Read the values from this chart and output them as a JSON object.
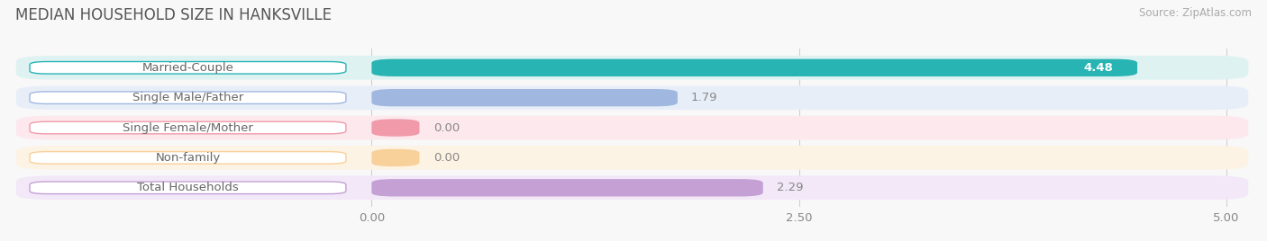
{
  "title": "MEDIAN HOUSEHOLD SIZE IN HANKSVILLE",
  "source": "Source: ZipAtlas.com",
  "categories": [
    "Married-Couple",
    "Single Male/Father",
    "Single Female/Mother",
    "Non-family",
    "Total Households"
  ],
  "values": [
    4.48,
    1.79,
    0.0,
    0.0,
    2.29
  ],
  "bar_colors": [
    "#29b4b4",
    "#a0b8e0",
    "#f09aaa",
    "#f8d09a",
    "#c4a0d4"
  ],
  "row_bg_colors": [
    "#dff2f2",
    "#e8eef8",
    "#fde8ee",
    "#fdf3e4",
    "#f2e8f8"
  ],
  "xlim_data": [
    0,
    5.0
  ],
  "xticks": [
    0.0,
    2.5,
    5.0
  ],
  "xtick_labels": [
    "0.00",
    "2.50",
    "5.00"
  ],
  "background_color": "#f8f8f8",
  "title_fontsize": 12,
  "bar_label_fontsize": 9.5,
  "tick_fontsize": 9.5,
  "source_fontsize": 8.5,
  "title_color": "#555555",
  "source_color": "#aaaaaa",
  "label_text_color": "#666666",
  "value_color_outside": "#888888",
  "value_color_inside": "#ffffff"
}
